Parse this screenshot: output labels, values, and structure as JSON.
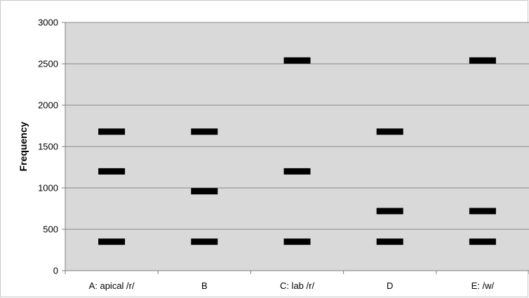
{
  "chart_data": {
    "type": "scatter",
    "title": "",
    "xlabel": "",
    "ylabel": "Frequency",
    "ylim": [
      0,
      3000
    ],
    "yticks": [
      0,
      500,
      1000,
      1500,
      2000,
      2500,
      3000
    ],
    "grid": true,
    "legend": "none",
    "categories": [
      "A: apical /r/",
      "B",
      "C: lab /r/",
      "D",
      "E: /w/"
    ],
    "series": [
      {
        "values": [
          350,
          350,
          350,
          350,
          350
        ]
      },
      {
        "values": [
          1200,
          960,
          1200,
          720,
          720
        ]
      },
      {
        "values": [
          1680,
          1680,
          2540,
          1680,
          2540
        ]
      }
    ],
    "colors": {
      "plot_background": "#d9d9d9",
      "gridline": "#8c8c8c",
      "marker": "#000000",
      "axis": "#808080"
    }
  }
}
